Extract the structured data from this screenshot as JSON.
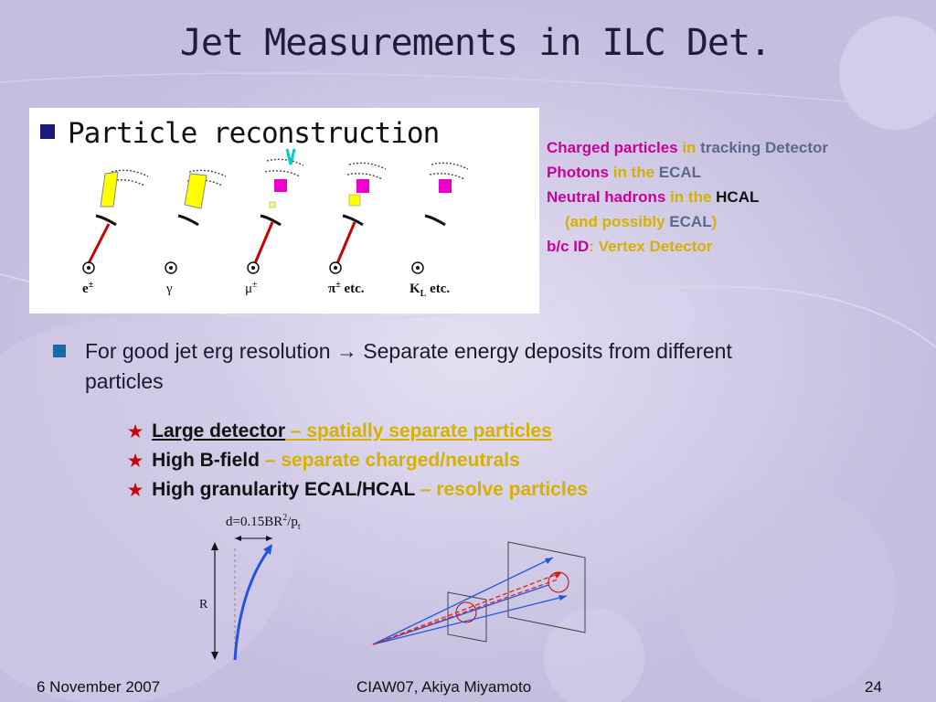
{
  "slide": {
    "title": "Jet Measurements in ILC Det.",
    "diagram_heading": "Particle reconstruction",
    "particle_labels": {
      "electron_sym": "e",
      "electron_sup": "±",
      "photon": "γ",
      "muon_sym": "μ",
      "muon_sup": "±",
      "pion_sym": "π",
      "pion_sup": "±",
      "pion_etc": " etc.",
      "kaon_sym": "K",
      "kaon_sub": "L",
      "kaon_etc": " etc."
    },
    "detector_lines": [
      {
        "a": "Charged particles",
        "b": " in ",
        "c": "tracking Detector"
      },
      {
        "a": "Photons",
        "b": " in the ",
        "c": "ECAL"
      },
      {
        "a": "Neutral hadrons",
        "b": " in the ",
        "c": "HCAL"
      },
      {
        "a": "(and possibly ",
        "b": "ECAL",
        "c": ")"
      },
      {
        "a": "b/c ID",
        "b": ": Vertex Detector"
      }
    ],
    "main_bullet": "For good jet erg resolution → Separate energy deposits from different particles",
    "star_items": [
      {
        "bold": "Large detector",
        "rest": " – spatially separate particles"
      },
      {
        "bold": "High B-field",
        "rest": " – separate charged/neutrals"
      },
      {
        "bold": "High granularity ECAL/HCAL",
        "rest": " – resolve particles"
      }
    ],
    "formula": {
      "base": "d=0.15BR",
      "sup": "2",
      "mid": "/p",
      "sub": "t"
    },
    "r_label": "R",
    "footer": {
      "date": "6 November 2007",
      "center": "CIAW07, Akiya Miyamoto",
      "page": "24"
    }
  }
}
